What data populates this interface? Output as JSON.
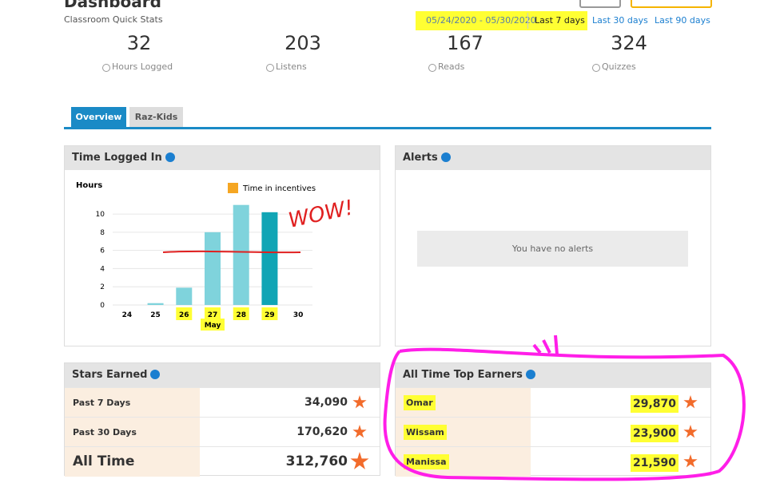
{
  "header": {
    "title": "Dashboard",
    "subtitle": "Classroom Quick Stats",
    "date_range": "05/24/2020 - 05/30/2020",
    "ranges": [
      "Last 7 days",
      "Last 30 days",
      "Last 90 days"
    ]
  },
  "stats": [
    {
      "value": "32",
      "label": "Hours Logged"
    },
    {
      "value": "203",
      "label": "Listens"
    },
    {
      "value": "167",
      "label": "Reads"
    },
    {
      "value": "324",
      "label": "Quizzes"
    }
  ],
  "tabs": [
    "Overview",
    "Raz-Kids"
  ],
  "time_logged": {
    "title": "Time Logged In"
  },
  "chart_data": {
    "type": "bar",
    "y_label": "Hours",
    "x_label": "May",
    "legend": "Time in incentives",
    "legend_color": "#f5a623",
    "annotation": "WOW!",
    "categories": [
      "24",
      "25",
      "26",
      "27",
      "28",
      "29",
      "30"
    ],
    "values": [
      0,
      0.2,
      1.9,
      8,
      11,
      10.2,
      0
    ],
    "colors": [
      "#7fd3dc",
      "#7fd3dc",
      "#7fd3dc",
      "#7fd3dc",
      "#7fd3dc",
      "#10a5b5",
      "#7fd3dc"
    ],
    "ylim": [
      0,
      11.5
    ],
    "yticks": [
      0,
      2,
      4,
      6,
      8,
      10
    ],
    "grid": true
  },
  "alerts": {
    "title": "Alerts",
    "message": "You have no alerts"
  },
  "stars_earned": {
    "title": "Stars Earned",
    "rows": [
      [
        "Past 7 Days",
        "34,090"
      ],
      [
        "Past 30 Days",
        "170,620"
      ],
      [
        "All Time",
        "312,760"
      ]
    ]
  },
  "top_earners": {
    "title": "All Time Top Earners",
    "rows": [
      [
        "Omar",
        "29,870"
      ],
      [
        "Wissam",
        "23,900"
      ],
      [
        "Manissa",
        "21,590"
      ]
    ]
  }
}
